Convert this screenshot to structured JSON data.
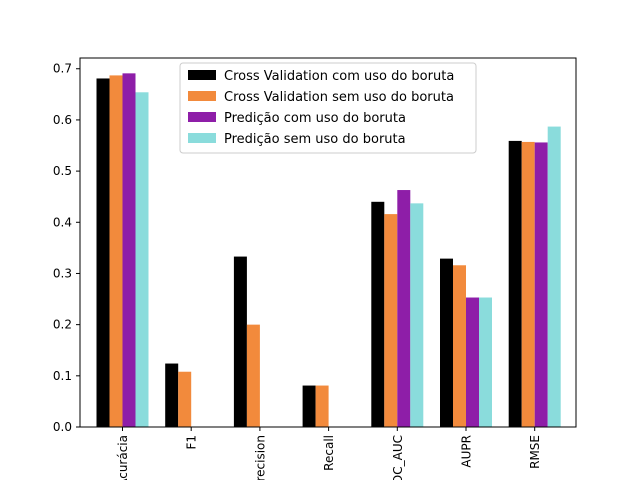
{
  "chart_data": {
    "type": "bar",
    "categories": [
      "Acurácia",
      "F1",
      "Precision",
      "Recall",
      "ROC_AUC",
      "AUPR",
      "RMSE"
    ],
    "series": [
      {
        "name": "Cross Validation com uso do boruta",
        "color": "#000000",
        "values": [
          0.681,
          0.124,
          0.333,
          0.081,
          0.44,
          0.329,
          0.559
        ]
      },
      {
        "name": "Cross Validation sem uso do boruta",
        "color": "#f28a3c",
        "values": [
          0.687,
          0.108,
          0.2,
          0.081,
          0.416,
          0.316,
          0.557
        ]
      },
      {
        "name": "Predição com uso do boruta",
        "color": "#8e1ea8",
        "values": [
          0.691,
          0.0,
          0.0,
          0.0,
          0.463,
          0.253,
          0.556
        ]
      },
      {
        "name": "Predição sem uso do boruta",
        "color": "#8adcdc",
        "values": [
          0.654,
          0.0,
          0.0,
          0.0,
          0.437,
          0.253,
          0.587
        ]
      }
    ],
    "yticks": [
      "0.0",
      "0.1",
      "0.2",
      "0.3",
      "0.4",
      "0.5",
      "0.6",
      "0.7"
    ],
    "ylim": [
      0,
      0.721
    ],
    "title": "",
    "xlabel": "",
    "ylabel": "",
    "grid": false,
    "legend_position": "top-center"
  }
}
